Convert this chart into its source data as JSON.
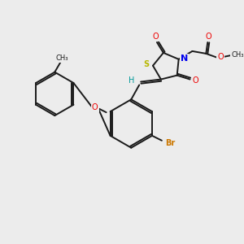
{
  "background_color": "#ececec",
  "bond_color": "#1a1a1a",
  "atom_colors": {
    "S": "#b8b800",
    "N": "#0000ee",
    "O": "#ee0000",
    "Br": "#cc7700",
    "H": "#009999",
    "C": "#1a1a1a"
  },
  "figsize": [
    3.0,
    3.0
  ],
  "dpi": 100
}
